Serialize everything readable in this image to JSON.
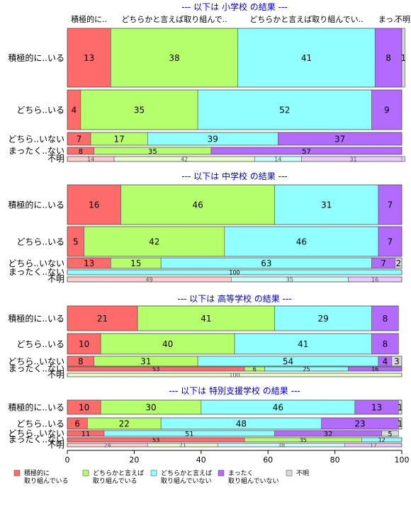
{
  "colors": {
    "red": "#ff6b6b",
    "green": "#b5ff6b",
    "cyan": "#8fffff",
    "purple": "#b36bff",
    "gray": "#d9d9d9",
    "title": "#0000cc",
    "lightRed": "#ffcccc",
    "lightGreen": "#e8ffcc",
    "lightCyan": "#ccffff",
    "lightPurple": "#e6ccff"
  },
  "column_headers": [
    "積極的に..",
    "どちらかと言えば取り組んで..",
    "どちらかと言えば取り組んでい..",
    "まっ..",
    "不明"
  ],
  "legend": [
    {
      "line1": "積極的に",
      "line2": "取り組んでいる",
      "color": "red"
    },
    {
      "line1": "どちらかと言えば",
      "line2": "取り組んでいる",
      "color": "green"
    },
    {
      "line1": "どちらかと言えば",
      "line2": "取り組んでいない",
      "color": "cyan"
    },
    {
      "line1": "まったく",
      "line2": "取り組んでいない",
      "color": "purple"
    },
    {
      "line1": "不明",
      "line2": "",
      "color": "gray"
    }
  ],
  "chart_data": {
    "type": "bar",
    "orientation": "horizontal",
    "stacked": true,
    "xlim": [
      0,
      100
    ],
    "xticks": [
      0,
      20,
      40,
      60,
      80,
      100
    ],
    "series_names": [
      "積極的に取り組んでいる",
      "どちらかと言えば取り組んでいる",
      "どちらかと言えば取り組んでいない",
      "まったく取り組んでいない",
      "不明"
    ],
    "panels": [
      {
        "title": "--- 以下は 小学校 の結果 ---",
        "rows": [
          {
            "label": "積極的に..いる",
            "values": [
              13,
              38,
              41,
              8,
              1
            ]
          },
          {
            "label": "どちら..いる",
            "values": [
              4,
              35,
              52,
              9,
              0
            ]
          },
          {
            "label": "どちら..いない",
            "values": [
              7,
              17,
              39,
              37,
              0
            ]
          },
          {
            "label": "まったく..ない",
            "values": [
              8,
              35,
              0,
              57,
              0
            ]
          },
          {
            "label": "不明",
            "values": [
              14,
              42,
              14,
              31,
              0
            ]
          }
        ]
      },
      {
        "title": "--- 以下は 中学校 の結果 ---",
        "rows": [
          {
            "label": "積極的に..いる",
            "values": [
              16,
              46,
              31,
              7,
              0
            ]
          },
          {
            "label": "どちら..いる",
            "values": [
              5,
              42,
              46,
              7,
              0
            ]
          },
          {
            "label": "どちら..いない",
            "values": [
              13,
              15,
              63,
              7,
              2
            ]
          },
          {
            "label": "まったく..ない",
            "values": [
              0,
              0,
              100,
              0,
              0
            ]
          },
          {
            "label": "不明",
            "values": [
              49,
              0,
              35,
              16,
              0
            ]
          }
        ]
      },
      {
        "title": "--- 以下は 高等学校 の結果 ---",
        "rows": [
          {
            "label": "積極的に..いる",
            "values": [
              21,
              41,
              29,
              8,
              0
            ]
          },
          {
            "label": "どちら..いる",
            "values": [
              10,
              40,
              41,
              8,
              0
            ]
          },
          {
            "label": "どちら..いない",
            "values": [
              8,
              31,
              54,
              4,
              3
            ]
          },
          {
            "label": "まったく..ない",
            "values": [
              53,
              6,
              25,
              16,
              0
            ]
          },
          {
            "label": "不明",
            "values": [
              0,
              100,
              0,
              0,
              0
            ]
          }
        ]
      },
      {
        "title": "--- 以下は 特別支援学校 の結果 ---",
        "rows": [
          {
            "label": "積極的に..いる",
            "values": [
              10,
              30,
              46,
              13,
              1
            ]
          },
          {
            "label": "どちら..いる",
            "values": [
              6,
              22,
              48,
              23,
              1
            ]
          },
          {
            "label": "どちら..いない",
            "values": [
              11,
              0,
              51,
              32,
              5
            ]
          },
          {
            "label": "まったく..ない",
            "values": [
              53,
              35,
              12,
              0,
              0
            ]
          },
          {
            "label": "不明",
            "values": [
              24,
              21,
              38,
              17,
              0
            ]
          }
        ]
      }
    ]
  }
}
